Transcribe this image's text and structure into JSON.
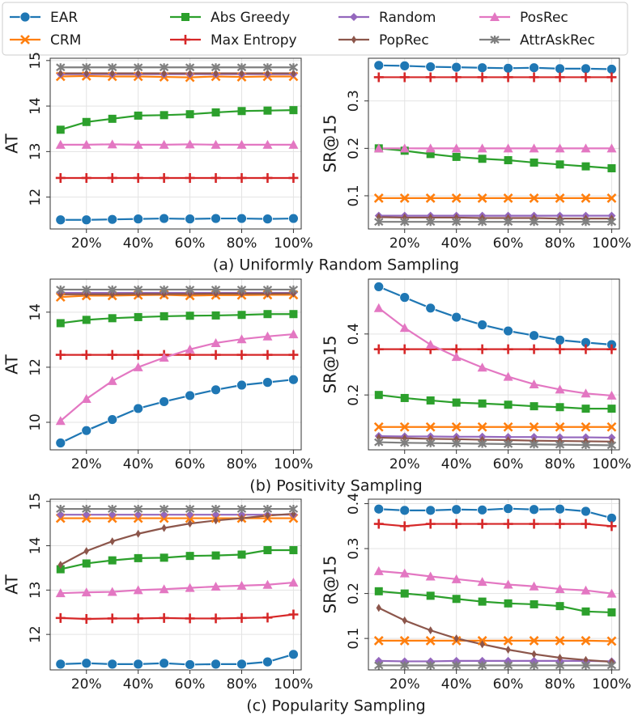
{
  "legend": [
    {
      "name": "EAR",
      "color": "#1f77b4",
      "marker": "o"
    },
    {
      "name": "CRM",
      "color": "#ff7f0e",
      "marker": "x"
    },
    {
      "name": "Abs Greedy",
      "color": "#2ca02c",
      "marker": "s"
    },
    {
      "name": "Max Entropy",
      "color": "#d62728",
      "marker": "+"
    },
    {
      "name": "Random",
      "color": "#9467bd",
      "marker": "D"
    },
    {
      "name": "PopRec",
      "color": "#8c564b",
      "marker": "d"
    },
    {
      "name": "PosRec",
      "color": "#e377c2",
      "marker": "^"
    },
    {
      "name": "AttrAskRec",
      "color": "#7f7f7f",
      "marker": "*"
    }
  ],
  "chart_data": [
    {
      "type": "line",
      "y_label": "AT",
      "caption": "(a) Uniformly Random Sampling",
      "grid": true,
      "x": [
        10,
        20,
        30,
        40,
        50,
        60,
        70,
        80,
        90,
        100
      ],
      "xlim": [
        6,
        103
      ],
      "xticks": [
        {
          "value": 20,
          "label": "20%"
        },
        {
          "value": 40,
          "label": "40%"
        },
        {
          "value": 60,
          "label": "60%"
        },
        {
          "value": 80,
          "label": "80%"
        },
        {
          "value": 100,
          "label": "100%"
        }
      ],
      "ylim": [
        11.3,
        15.05
      ],
      "yticks": [
        12,
        13,
        14,
        15
      ],
      "series": [
        {
          "values": [
            11.5,
            11.5,
            11.51,
            11.52,
            11.53,
            11.52,
            11.53,
            11.53,
            11.52,
            11.53
          ]
        },
        {
          "values": [
            14.65,
            14.66,
            14.65,
            14.65,
            14.64,
            14.63,
            14.65,
            14.64,
            14.65,
            14.65
          ]
        },
        {
          "values": [
            13.48,
            13.65,
            13.72,
            13.79,
            13.8,
            13.82,
            13.86,
            13.89,
            13.9,
            13.91
          ]
        },
        {
          "values": [
            12.42,
            12.42,
            12.42,
            12.42,
            12.42,
            12.42,
            12.42,
            12.42,
            12.42,
            12.42
          ]
        },
        {
          "values": [
            14.7,
            14.7,
            14.7,
            14.7,
            14.7,
            14.7,
            14.7,
            14.7,
            14.7,
            14.7
          ]
        },
        {
          "values": [
            14.72,
            14.72,
            14.72,
            14.72,
            14.72,
            14.72,
            14.72,
            14.72,
            14.72,
            14.72
          ]
        },
        {
          "values": [
            13.15,
            13.15,
            13.16,
            13.15,
            13.15,
            13.16,
            13.15,
            13.15,
            13.15,
            13.15
          ]
        },
        {
          "values": [
            14.85,
            14.85,
            14.85,
            14.85,
            14.85,
            14.85,
            14.85,
            14.85,
            14.85,
            14.85
          ]
        }
      ]
    },
    {
      "type": "line",
      "y_label": "SR@15",
      "grid": true,
      "x": [
        10,
        20,
        30,
        40,
        50,
        60,
        70,
        80,
        90,
        100
      ],
      "xlim": [
        6,
        103
      ],
      "xticks": [
        {
          "value": 20,
          "label": "20%"
        },
        {
          "value": 40,
          "label": "40%"
        },
        {
          "value": 60,
          "label": "60%"
        },
        {
          "value": 80,
          "label": "80%"
        },
        {
          "value": 100,
          "label": "100%"
        }
      ],
      "ylim": [
        0.03,
        0.39
      ],
      "yticks": [
        0.1,
        0.2,
        0.3
      ],
      "series": [
        {
          "values": [
            0.375,
            0.374,
            0.372,
            0.371,
            0.37,
            0.369,
            0.37,
            0.368,
            0.368,
            0.367
          ]
        },
        {
          "values": [
            0.095,
            0.095,
            0.095,
            0.095,
            0.095,
            0.095,
            0.095,
            0.095,
            0.095,
            0.095
          ]
        },
        {
          "values": [
            0.2,
            0.195,
            0.188,
            0.182,
            0.178,
            0.175,
            0.17,
            0.166,
            0.162,
            0.158
          ]
        },
        {
          "values": [
            0.35,
            0.35,
            0.35,
            0.35,
            0.35,
            0.35,
            0.35,
            0.35,
            0.35,
            0.35
          ]
        },
        {
          "values": [
            0.058,
            0.058,
            0.058,
            0.058,
            0.058,
            0.058,
            0.058,
            0.058,
            0.058,
            0.058
          ]
        },
        {
          "values": [
            0.055,
            0.054,
            0.054,
            0.054,
            0.053,
            0.053,
            0.053,
            0.052,
            0.052,
            0.052
          ]
        },
        {
          "values": [
            0.2,
            0.2,
            0.2,
            0.2,
            0.2,
            0.2,
            0.2,
            0.2,
            0.2,
            0.2
          ]
        },
        {
          "values": [
            0.045,
            0.045,
            0.045,
            0.045,
            0.045,
            0.045,
            0.045,
            0.045,
            0.045,
            0.045
          ]
        }
      ]
    },
    {
      "type": "line",
      "y_label": "AT",
      "caption": "(b) Positivity Sampling",
      "grid": true,
      "x": [
        10,
        20,
        30,
        40,
        50,
        60,
        70,
        80,
        90,
        100
      ],
      "xlim": [
        6,
        103
      ],
      "xticks": [
        {
          "value": 20,
          "label": "20%"
        },
        {
          "value": 40,
          "label": "40%"
        },
        {
          "value": 60,
          "label": "60%"
        },
        {
          "value": 80,
          "label": "80%"
        },
        {
          "value": 100,
          "label": "100%"
        }
      ],
      "ylim": [
        9,
        15.2
      ],
      "yticks": [
        10,
        12,
        14
      ],
      "series": [
        {
          "values": [
            9.25,
            9.7,
            10.1,
            10.5,
            10.75,
            10.97,
            11.18,
            11.35,
            11.45,
            11.55
          ]
        },
        {
          "values": [
            14.55,
            14.6,
            14.6,
            14.62,
            14.63,
            14.6,
            14.62,
            14.62,
            14.63,
            14.63
          ]
        },
        {
          "values": [
            13.6,
            13.72,
            13.78,
            13.82,
            13.85,
            13.87,
            13.88,
            13.9,
            13.93,
            13.93
          ]
        },
        {
          "values": [
            12.45,
            12.45,
            12.45,
            12.45,
            12.45,
            12.45,
            12.45,
            12.45,
            12.45,
            12.45
          ]
        },
        {
          "values": [
            14.7,
            14.7,
            14.7,
            14.7,
            14.7,
            14.7,
            14.7,
            14.7,
            14.7,
            14.7
          ]
        },
        {
          "values": [
            14.65,
            14.65,
            14.65,
            14.66,
            14.66,
            14.66,
            14.67,
            14.67,
            14.67,
            14.68
          ]
        },
        {
          "values": [
            10.05,
            10.85,
            11.5,
            12.0,
            12.35,
            12.65,
            12.88,
            13.02,
            13.12,
            13.2
          ]
        },
        {
          "values": [
            14.82,
            14.82,
            14.82,
            14.82,
            14.82,
            14.82,
            14.82,
            14.82,
            14.82,
            14.82
          ]
        }
      ]
    },
    {
      "type": "line",
      "y_label": "SR@15",
      "grid": true,
      "x": [
        10,
        20,
        30,
        40,
        50,
        60,
        70,
        80,
        90,
        100
      ],
      "xlim": [
        6,
        103
      ],
      "xticks": [
        {
          "value": 20,
          "label": "20%"
        },
        {
          "value": 40,
          "label": "40%"
        },
        {
          "value": 60,
          "label": "60%"
        },
        {
          "value": 80,
          "label": "80%"
        },
        {
          "value": 100,
          "label": "100%"
        }
      ],
      "ylim": [
        0.02,
        0.58
      ],
      "yticks": [
        0.2,
        0.4
      ],
      "series": [
        {
          "values": [
            0.555,
            0.52,
            0.485,
            0.455,
            0.43,
            0.41,
            0.395,
            0.38,
            0.372,
            0.365
          ]
        },
        {
          "values": [
            0.095,
            0.095,
            0.095,
            0.095,
            0.095,
            0.095,
            0.095,
            0.095,
            0.095,
            0.095
          ]
        },
        {
          "values": [
            0.2,
            0.19,
            0.182,
            0.175,
            0.172,
            0.168,
            0.163,
            0.16,
            0.155,
            0.155
          ]
        },
        {
          "values": [
            0.35,
            0.35,
            0.35,
            0.35,
            0.35,
            0.35,
            0.35,
            0.35,
            0.35,
            0.35
          ]
        },
        {
          "values": [
            0.065,
            0.064,
            0.064,
            0.063,
            0.063,
            0.062,
            0.062,
            0.061,
            0.061,
            0.06
          ]
        },
        {
          "values": [
            0.06,
            0.058,
            0.056,
            0.055,
            0.053,
            0.052,
            0.05,
            0.049,
            0.048,
            0.047
          ]
        },
        {
          "values": [
            0.485,
            0.42,
            0.365,
            0.325,
            0.29,
            0.26,
            0.235,
            0.218,
            0.205,
            0.198
          ]
        },
        {
          "values": [
            0.045,
            0.043,
            0.042,
            0.041,
            0.04,
            0.039,
            0.038,
            0.037,
            0.036,
            0.035
          ]
        }
      ]
    },
    {
      "type": "line",
      "y_label": "AT",
      "caption": "(c) Popularity Sampling",
      "grid": true,
      "x": [
        10,
        20,
        30,
        40,
        50,
        60,
        70,
        80,
        90,
        100
      ],
      "xlim": [
        6,
        103
      ],
      "xticks": [
        {
          "value": 20,
          "label": "20%"
        },
        {
          "value": 40,
          "label": "40%"
        },
        {
          "value": 60,
          "label": "60%"
        },
        {
          "value": 80,
          "label": "80%"
        },
        {
          "value": 100,
          "label": "100%"
        }
      ],
      "ylim": [
        11.2,
        15.05
      ],
      "yticks": [
        12,
        13,
        14,
        15
      ],
      "series": [
        {
          "values": [
            11.33,
            11.35,
            11.33,
            11.33,
            11.35,
            11.32,
            11.33,
            11.33,
            11.38,
            11.55
          ]
        },
        {
          "values": [
            14.62,
            14.62,
            14.62,
            14.62,
            14.62,
            14.62,
            14.62,
            14.62,
            14.62,
            14.62
          ]
        },
        {
          "values": [
            13.47,
            13.6,
            13.67,
            13.72,
            13.73,
            13.77,
            13.78,
            13.8,
            13.9,
            13.9
          ]
        },
        {
          "values": [
            12.37,
            12.35,
            12.36,
            12.36,
            12.37,
            12.36,
            12.36,
            12.37,
            12.38,
            12.45
          ]
        },
        {
          "values": [
            14.7,
            14.7,
            14.7,
            14.7,
            14.7,
            14.7,
            14.7,
            14.7,
            14.7,
            14.7
          ]
        },
        {
          "values": [
            13.57,
            13.88,
            14.1,
            14.27,
            14.4,
            14.5,
            14.57,
            14.62,
            14.68,
            14.72
          ]
        },
        {
          "values": [
            12.93,
            12.95,
            12.96,
            13.0,
            13.02,
            13.05,
            13.08,
            13.1,
            13.12,
            13.17
          ]
        },
        {
          "values": [
            14.83,
            14.83,
            14.83,
            14.83,
            14.83,
            14.83,
            14.83,
            14.83,
            14.83,
            14.83
          ]
        }
      ]
    },
    {
      "type": "line",
      "y_label": "SR@15",
      "grid": true,
      "x": [
        10,
        20,
        30,
        40,
        50,
        60,
        70,
        80,
        90,
        100
      ],
      "xlim": [
        6,
        103
      ],
      "xticks": [
        {
          "value": 20,
          "label": "20%"
        },
        {
          "value": 40,
          "label": "40%"
        },
        {
          "value": 60,
          "label": "60%"
        },
        {
          "value": 80,
          "label": "80%"
        },
        {
          "value": 100,
          "label": "100%"
        }
      ],
      "ylim": [
        0.03,
        0.41
      ],
      "yticks": [
        0.1,
        0.2,
        0.3,
        0.4
      ],
      "series": [
        {
          "values": [
            0.388,
            0.385,
            0.385,
            0.387,
            0.386,
            0.389,
            0.387,
            0.388,
            0.383,
            0.368
          ]
        },
        {
          "values": [
            0.095,
            0.095,
            0.095,
            0.095,
            0.095,
            0.095,
            0.095,
            0.095,
            0.095,
            0.094
          ]
        },
        {
          "values": [
            0.205,
            0.2,
            0.195,
            0.188,
            0.182,
            0.178,
            0.176,
            0.172,
            0.16,
            0.158
          ]
        },
        {
          "values": [
            0.355,
            0.35,
            0.355,
            0.355,
            0.355,
            0.355,
            0.355,
            0.355,
            0.355,
            0.35
          ]
        },
        {
          "values": [
            0.05,
            0.049,
            0.049,
            0.05,
            0.05,
            0.05,
            0.05,
            0.05,
            0.05,
            0.049
          ]
        },
        {
          "values": [
            0.168,
            0.14,
            0.118,
            0.1,
            0.087,
            0.075,
            0.065,
            0.057,
            0.052,
            0.048
          ]
        },
        {
          "values": [
            0.25,
            0.245,
            0.238,
            0.232,
            0.226,
            0.22,
            0.216,
            0.21,
            0.207,
            0.2
          ]
        },
        {
          "values": [
            0.04,
            0.04,
            0.04,
            0.04,
            0.04,
            0.04,
            0.04,
            0.04,
            0.04,
            0.04
          ]
        }
      ]
    }
  ]
}
